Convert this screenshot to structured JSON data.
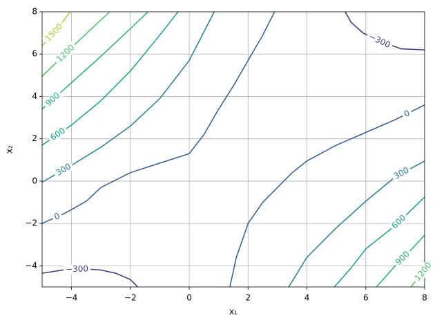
{
  "chart_data": {
    "type": "contour",
    "xlabel": "x₁",
    "ylabel": "x₂",
    "xlim": [
      -5,
      8
    ],
    "ylim": [
      -5,
      8
    ],
    "xticks": [
      {
        "value": -4,
        "label": "−4"
      },
      {
        "value": -2,
        "label": "−2"
      },
      0,
      2,
      4,
      6,
      8
    ],
    "yticks": [
      {
        "value": -4,
        "label": "−4"
      },
      {
        "value": -2,
        "label": "−2"
      },
      0,
      2,
      4,
      6,
      8
    ],
    "grid": true,
    "contours": [
      {
        "level": -300,
        "level_label": "−300",
        "color": "#46337e",
        "lines": [
          {
            "x": [
              5.3,
              5.5,
              5.9,
              6.5,
              7.2,
              8
            ],
            "y": [
              8,
              7.5,
              7.0,
              6.6,
              6.25,
              6.2
            ]
          },
          {
            "x": [
              -5,
              -4.2,
              -3.5,
              -3,
              -2.5,
              -2,
              -1.75
            ],
            "y": [
              -4.35,
              -4.18,
              -4.15,
              -4.2,
              -4.35,
              -4.65,
              -5
            ]
          }
        ]
      },
      {
        "level": 0,
        "color": "#365c8d",
        "lines": [
          {
            "x": [
              -5,
              -4.2,
              -3.5,
              -3,
              -2,
              -1,
              0,
              0.5,
              1,
              1.5,
              2,
              2.5,
              2.9
            ],
            "y": [
              -2.0,
              -1.5,
              -0.95,
              -0.3,
              0.4,
              0.85,
              1.3,
              2.2,
              3.4,
              4.5,
              5.7,
              6.9,
              8
            ]
          },
          {
            "x": [
              1.38,
              1.6,
              2,
              2.5,
              3,
              3.5,
              4,
              5,
              6,
              7,
              8
            ],
            "y": [
              -5,
              -3.6,
              -2,
              -1,
              -0.3,
              0.4,
              0.95,
              1.7,
              2.3,
              2.9,
              3.6
            ]
          }
        ]
      },
      {
        "level": 300,
        "color": "#277f8e",
        "lines": [
          {
            "x": [
              -5,
              -4,
              -3,
              -2,
              -1,
              0,
              0.85
            ],
            "y": [
              -0.05,
              0.75,
              1.6,
              2.6,
              3.9,
              5.7,
              8
            ]
          },
          {
            "x": [
              3.38,
              4,
              5,
              6,
              7,
              8
            ],
            "y": [
              -5,
              -3.6,
              -2.2,
              -0.95,
              0.2,
              0.95
            ]
          }
        ]
      },
      {
        "level": 600,
        "color": "#1fa187",
        "lines": [
          {
            "x": [
              -5,
              -4,
              -3,
              -2,
              -1,
              -0.38
            ],
            "y": [
              1.7,
              2.65,
              3.8,
              5.2,
              6.9,
              8
            ]
          },
          {
            "x": [
              4.93,
              5.5,
              6,
              7,
              8
            ],
            "y": [
              -5,
              -4.1,
              -3.2,
              -2.1,
              -0.75
            ]
          }
        ]
      },
      {
        "level": 900,
        "color": "#27ad81",
        "lines": [
          {
            "x": [
              -5,
              -4,
              -3,
              -2,
              -1.4
            ],
            "y": [
              3.4,
              4.65,
              5.9,
              7.2,
              8
            ]
          },
          {
            "x": [
              6.36,
              7,
              7.5,
              8
            ],
            "y": [
              -5,
              -4.0,
              -3.3,
              -2.55
            ]
          }
        ]
      },
      {
        "level": 1200,
        "color": "#4ac16d",
        "lines": [
          {
            "x": [
              -5,
              -4,
              -3.4,
              -2.7
            ],
            "y": [
              4.95,
              6.3,
              7.1,
              8
            ]
          },
          {
            "x": [
              7.53,
              8
            ],
            "y": [
              -5,
              -4.2
            ]
          }
        ]
      },
      {
        "level": 1500,
        "color": "#a0da39",
        "lines": [
          {
            "x": [
              -5,
              -4.5,
              -4.05
            ],
            "y": [
              6.4,
              7.15,
              8
            ]
          }
        ]
      }
    ]
  }
}
